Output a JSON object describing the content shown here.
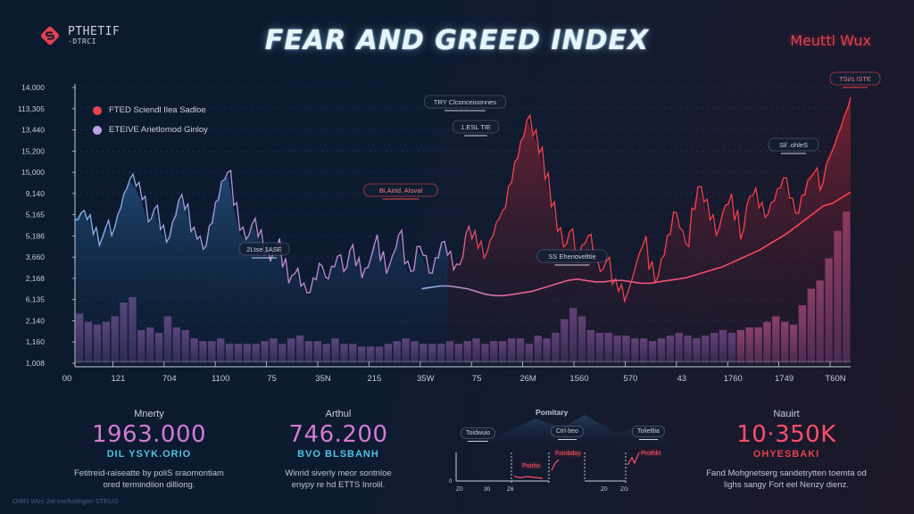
{
  "header": {
    "logo_text_line1": "PTHETIF",
    "logo_text_line2": "·DTRCI",
    "logo_icon": "s-diamond-logo-icon",
    "title": "FEAR AND GREED INDEX",
    "top_right_label": "Meuttl Wux"
  },
  "legend": [
    {
      "label": "FTED Sciendl Ilea Sadloe",
      "color": "#e8424e"
    },
    {
      "label": "ETEIVE Arietlomod Ginloy",
      "color": "#b9a3e6"
    }
  ],
  "colors": {
    "fear_line": "#8fb4ef",
    "fear_accent": "#c48ad8",
    "greed_line": "#f0424c",
    "moving_avg": "#e84a55",
    "volume_bar": "#6a4a86",
    "volume_bar_greed": "#a04a78",
    "accent_pink": "#d47ad4",
    "accent_cyan": "#5cc8e8",
    "accent_red": "#ff4f6a"
  },
  "chart_data": {
    "type": "line",
    "title": "FEAR AND GREED INDEX",
    "xlabel": "",
    "ylabel": "",
    "grid": true,
    "legend_position": "top-left",
    "y_tick_labels": [
      "14,000",
      "113,305",
      "13,440",
      "15,200",
      "15,000",
      "9,140",
      "5,165",
      "5,186",
      "3,660",
      "2,168",
      "6,135",
      "2,140",
      "1,160",
      "1,008"
    ],
    "x_tick_labels": [
      "00",
      "121",
      "704",
      "1100",
      "75",
      "35N",
      "215",
      "35W",
      "75",
      "26M",
      "1560",
      "570",
      "43",
      "1760",
      "1749",
      "T60N"
    ],
    "ylim": [
      0,
      100
    ],
    "series": [
      {
        "name": "Index",
        "values": [
          52,
          55,
          53,
          48,
          44,
          50,
          47,
          54,
          61,
          66,
          63,
          58,
          50,
          55,
          48,
          44,
          52,
          60,
          57,
          49,
          46,
          42,
          50,
          58,
          65,
          68,
          56,
          47,
          44,
          50,
          46,
          40,
          38,
          43,
          36,
          30,
          33,
          28,
          25,
          30,
          35,
          30,
          34,
          38,
          33,
          41,
          36,
          32,
          36,
          44,
          38,
          33,
          39,
          46,
          35,
          32,
          41,
          38,
          32,
          38,
          44,
          40,
          35,
          37,
          48,
          46,
          42,
          38,
          44,
          50,
          54,
          63,
          72,
          80,
          88,
          83,
          77,
          68,
          58,
          49,
          43,
          48,
          38,
          42,
          45,
          36,
          32,
          36,
          28,
          26,
          23,
          30,
          38,
          44,
          35,
          30,
          38,
          46,
          54,
          48,
          42,
          55,
          63,
          58,
          52,
          47,
          55,
          59,
          53,
          46,
          58,
          61,
          56,
          52,
          57,
          62,
          66,
          59,
          54,
          61,
          67,
          70,
          64,
          73,
          78,
          84,
          90,
          96
        ]
      },
      {
        "name": "Moving Average",
        "values": [
          null,
          null,
          null,
          null,
          null,
          null,
          null,
          null,
          null,
          null,
          null,
          null,
          null,
          null,
          null,
          null,
          null,
          null,
          null,
          null,
          null,
          null,
          null,
          null,
          null,
          null,
          null,
          null,
          null,
          null,
          null,
          null,
          null,
          null,
          null,
          null,
          null,
          null,
          27,
          27.5,
          28,
          28,
          27.5,
          27,
          26,
          25,
          24.5,
          24.5,
          25,
          25.5,
          26,
          27,
          28,
          29,
          30,
          30.5,
          30,
          29.5,
          29.5,
          30,
          30,
          29.5,
          29,
          29,
          29.5,
          30,
          30.5,
          31,
          32,
          33,
          34,
          35,
          36.5,
          38,
          39.5,
          41,
          43,
          45,
          47,
          49.5,
          52,
          54.5,
          57,
          58,
          60,
          62
        ]
      },
      {
        "name": "Volume",
        "values": [
          18,
          15,
          14,
          15,
          17,
          22,
          24,
          12,
          13,
          11,
          17,
          13,
          12,
          9,
          8,
          8,
          9,
          7,
          7,
          7,
          7,
          8,
          9,
          7,
          9,
          10,
          8,
          8,
          7,
          9,
          7,
          7,
          6,
          6,
          6,
          7,
          8,
          9,
          8,
          7,
          7,
          7,
          8,
          7,
          8,
          9,
          7,
          8,
          8,
          9,
          9,
          7,
          10,
          9,
          11,
          16,
          20,
          17,
          12,
          11,
          11,
          10,
          10,
          9,
          9,
          8,
          9,
          10,
          11,
          10,
          9,
          10,
          11,
          12,
          11,
          12,
          13,
          13,
          15,
          17,
          15,
          14,
          21,
          27,
          30,
          38,
          48,
          55
        ]
      }
    ],
    "annotations": [
      {
        "text": "TRY Clconceioonnes",
        "type": "neutral"
      },
      {
        "text": "1.ESL TIE",
        "type": "neutral"
      },
      {
        "text": "Bi.Airtd. Aloval",
        "type": "red"
      },
      {
        "text": "2Ltse 1ASE",
        "type": "neutral"
      },
      {
        "text": "SS Ehenovelttie",
        "type": "neutral"
      },
      {
        "text": "Sl/ .ohleS",
        "type": "neutral"
      },
      {
        "text": "TSi/s ISTE",
        "type": "red"
      }
    ]
  },
  "stats": [
    {
      "label": "Mnerty",
      "value": "1963.000",
      "sub": "DIL YSYK.ORIO",
      "desc_line1": "Fetitreid-raiseatte by poliS sraomontiam",
      "desc_line2": "ored termindiion dilliong."
    },
    {
      "label": "Arthul",
      "value": "746.200",
      "sub": "BVO BLSBANH",
      "desc_line1": "Winrid siverly meor sontnloe",
      "desc_line2": "enypy re hd ETTS Inrolil."
    },
    {
      "label": "Nauirt",
      "value": "10·350K",
      "sub": "OHYESBAKI",
      "desc_line1": "Fand Mohgnetserg sandetrytten toemta od",
      "desc_line2": "lighs sangy Fort eel Nenzy dienz."
    }
  ],
  "mini_panel": {
    "title": "Pomitary",
    "pills": [
      "Toidwuio",
      "Ctrl·beo",
      "Tolieltlia"
    ],
    "tags": [
      "Pooho",
      "Foinbdoy",
      "Prothkt"
    ],
    "x_labels": [
      "Z0",
      "30",
      "Z6",
      "Z0",
      "ZG"
    ],
    "y_label": "0"
  },
  "footer": {
    "note": "OWN Won 2ol toe/koithgon STEUG"
  }
}
